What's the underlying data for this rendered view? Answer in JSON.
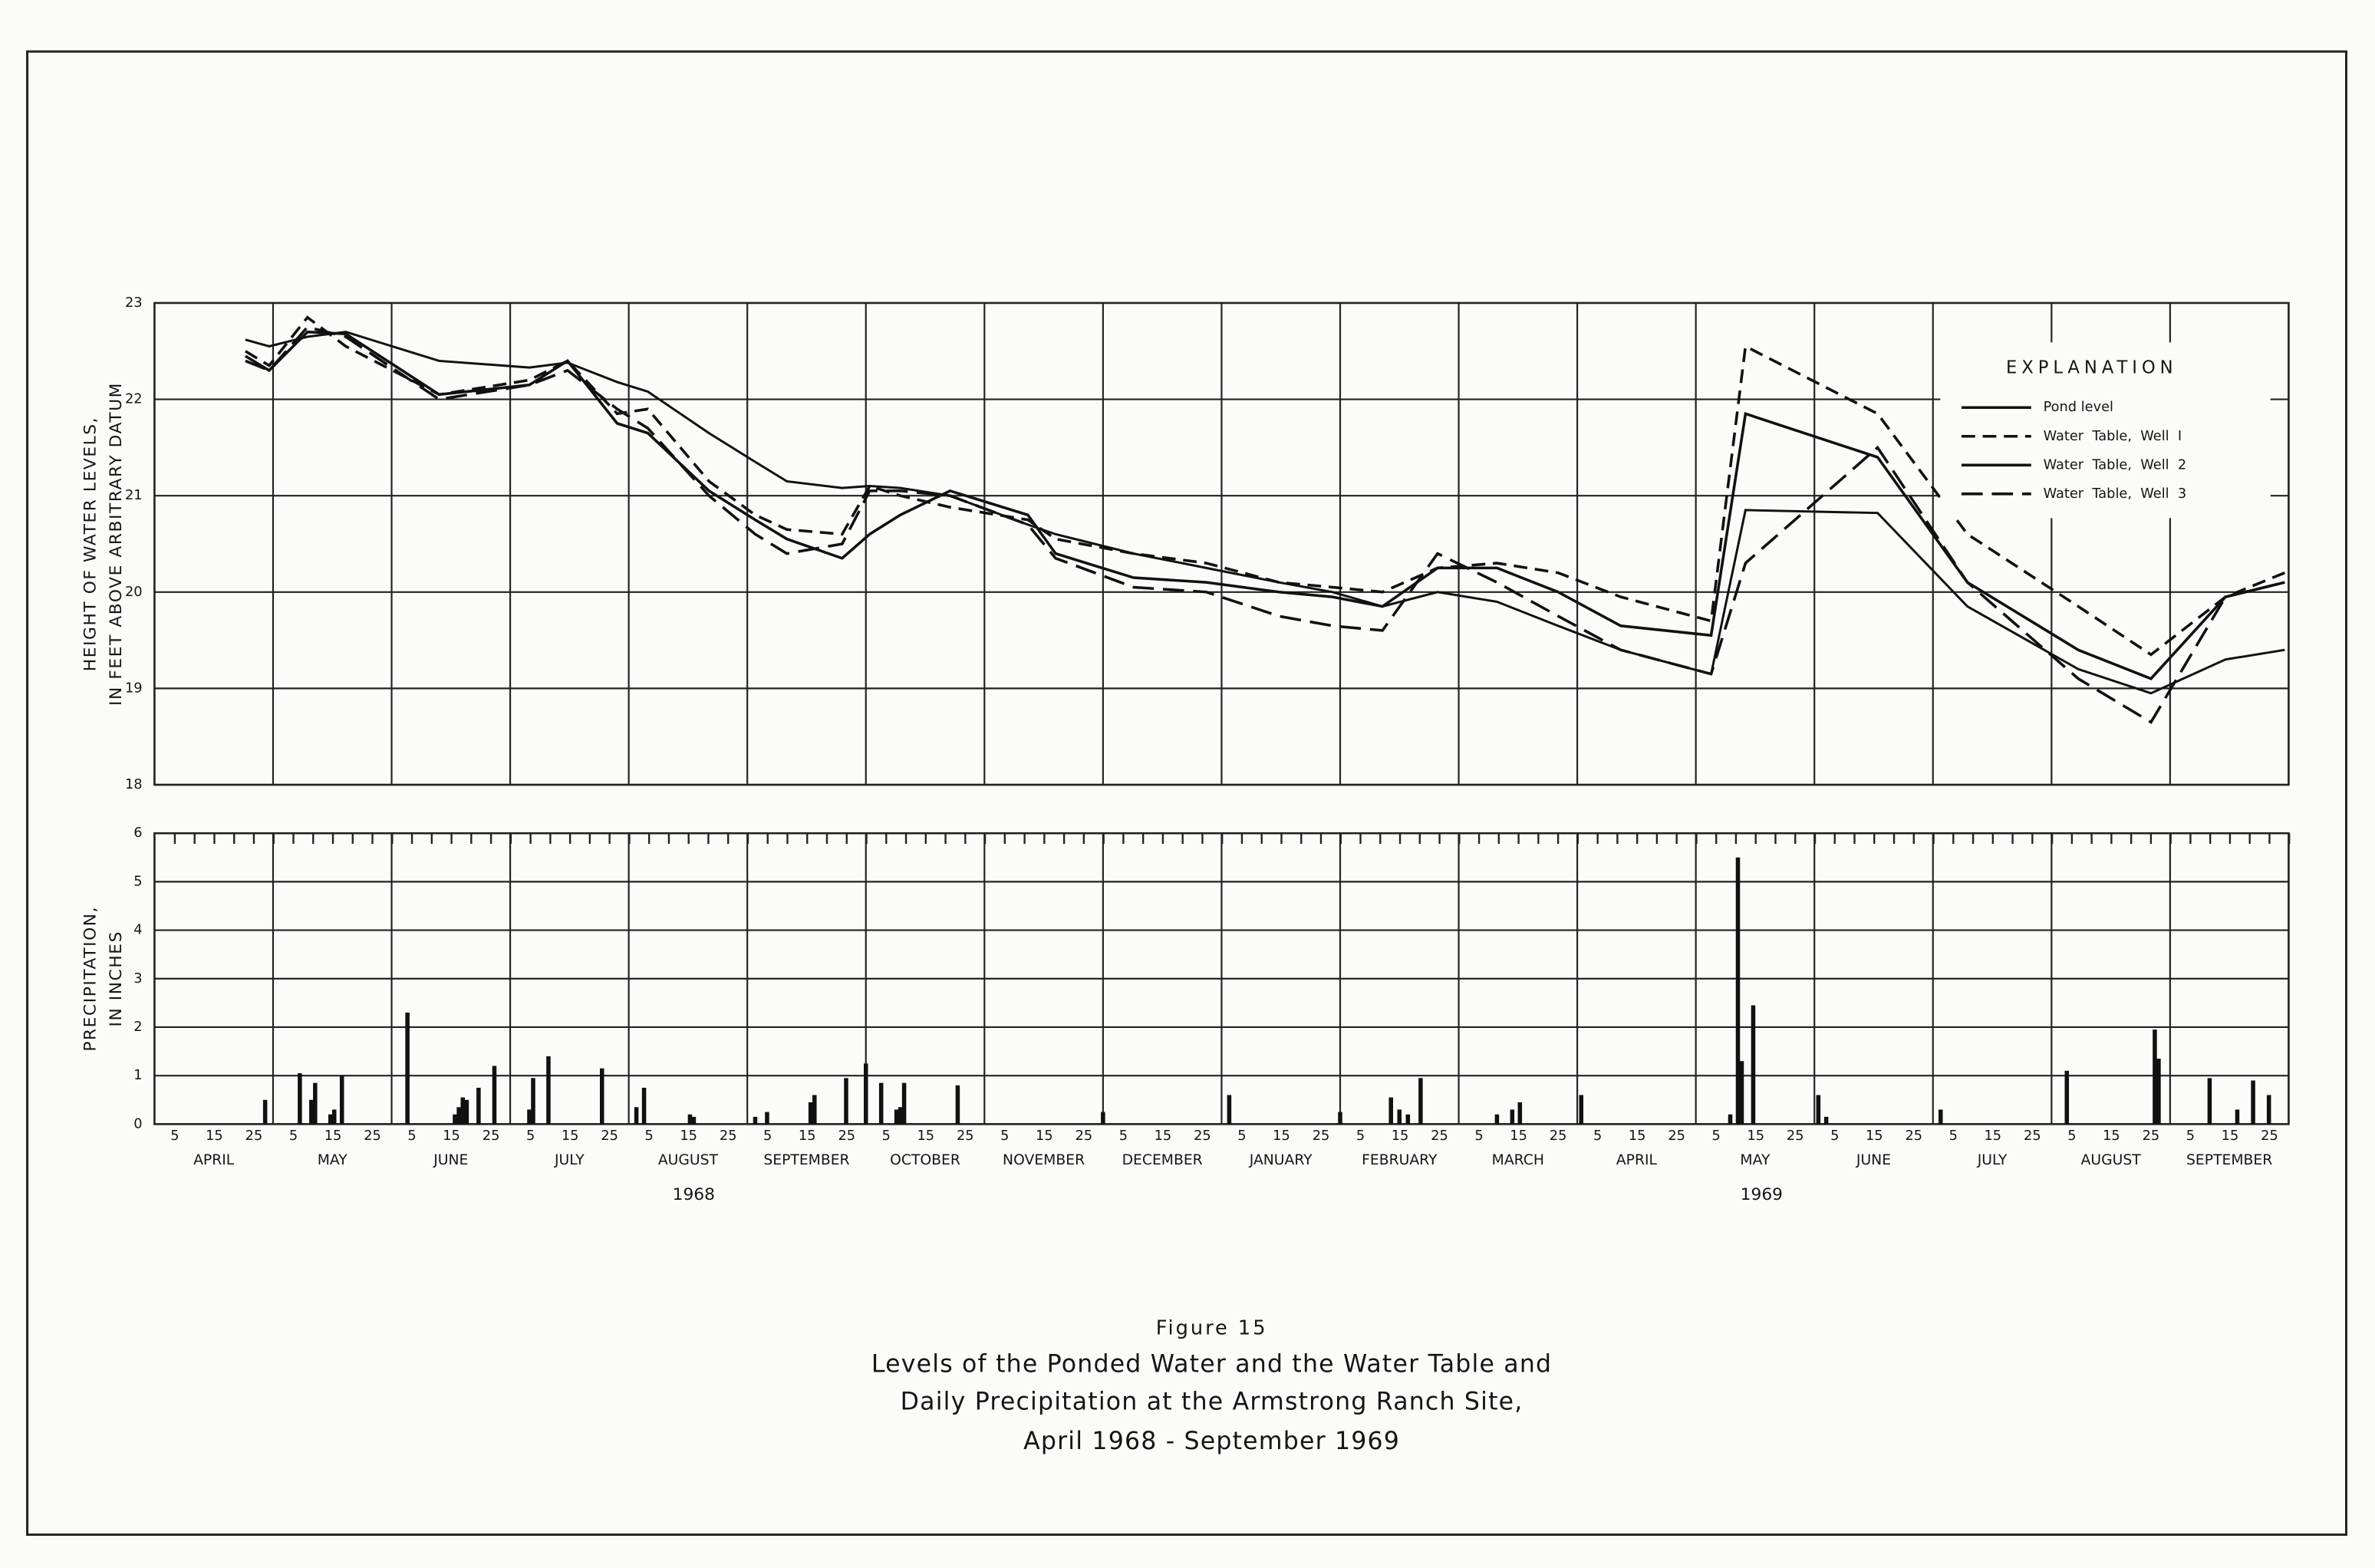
{
  "chart_data": [
    {
      "type": "line",
      "y_label": [
        "HEIGHT OF WATER LEVELS,",
        "IN FEET ABOVE ARBITRARY DATUM"
      ],
      "legend_title": "EXPLANATION",
      "legend": "upper right",
      "grid": true,
      "xlim": [
        "1968-04-01",
        "1969-10-01"
      ],
      "ylim": [
        18,
        23
      ],
      "yticks": [
        18,
        19,
        20,
        21,
        22,
        23
      ],
      "x": [
        "1968-04-24",
        "1968-04-30",
        "1968-05-10",
        "1968-05-20",
        "1968-06-13",
        "1968-07-06",
        "1968-07-16",
        "1968-07-29",
        "1968-08-06",
        "1968-08-22",
        "1968-09-03",
        "1968-09-11",
        "1968-09-25",
        "1968-10-02",
        "1968-10-10",
        "1968-10-23",
        "1968-11-12",
        "1968-11-19",
        "1968-12-09",
        "1968-12-28",
        "1969-01-16",
        "1969-01-30",
        "1969-02-11",
        "1969-02-24",
        "1969-03-11",
        "1969-03-27",
        "1969-04-12",
        "1969-05-05",
        "1969-05-14",
        "1969-06-17",
        "1969-07-10",
        "1969-08-08",
        "1969-08-27",
        "1969-09-15",
        "1969-09-30"
      ],
      "series": [
        {
          "name": "Pond level",
          "color": "#111111",
          "linestyle": "solid",
          "values": [
            22.62,
            22.55,
            22.65,
            22.7,
            22.4,
            22.33,
            22.38,
            22.18,
            22.08,
            21.65,
            21.35,
            21.15,
            21.08,
            21.1,
            21.08,
            21.0,
            20.7,
            20.6,
            20.4,
            20.25,
            20.1,
            20.0,
            19.85,
            20.0,
            19.9,
            19.65,
            19.4,
            19.15,
            20.85,
            20.82,
            19.85,
            19.2,
            18.95,
            19.3,
            19.4
          ]
        },
        {
          "name": "Water  Table,  Well  I",
          "color": "#111111",
          "linestyle": "dashed",
          "values": [
            22.5,
            22.35,
            22.85,
            22.55,
            22.05,
            22.2,
            22.4,
            21.85,
            21.9,
            21.15,
            20.8,
            20.65,
            20.6,
            21.1,
            21.0,
            20.88,
            20.75,
            20.55,
            20.4,
            20.3,
            20.1,
            20.05,
            20.0,
            20.25,
            20.3,
            20.2,
            19.95,
            19.7,
            22.55,
            21.85,
            20.6,
            19.85,
            19.35,
            19.95,
            20.2
          ]
        },
        {
          "name": "Water  Table,  Well  2",
          "color": "#111111",
          "linestyle": "solid",
          "values": [
            22.45,
            22.3,
            22.7,
            22.68,
            22.05,
            22.15,
            22.4,
            21.75,
            21.65,
            21.05,
            20.75,
            20.55,
            20.35,
            20.6,
            20.8,
            21.05,
            20.8,
            20.4,
            20.15,
            20.1,
            20.0,
            19.95,
            19.85,
            20.25,
            20.25,
            20.0,
            19.65,
            19.55,
            21.85,
            21.4,
            20.1,
            19.4,
            19.1,
            19.95,
            20.1
          ]
        },
        {
          "name": "Water  Table,  Well  3",
          "color": "#111111",
          "linestyle": "long-dashed",
          "values": [
            22.4,
            22.3,
            22.75,
            22.65,
            22.0,
            22.15,
            22.3,
            21.9,
            21.7,
            21.0,
            20.6,
            20.4,
            20.5,
            21.05,
            21.05,
            21.0,
            20.7,
            20.35,
            20.05,
            20.0,
            19.75,
            19.65,
            19.6,
            20.4,
            20.1,
            19.75,
            19.4,
            19.15,
            20.3,
            21.5,
            20.1,
            19.1,
            18.65,
            19.95,
            20.1
          ]
        }
      ]
    },
    {
      "type": "bar",
      "y_label": [
        "PRECIPITATION,",
        "IN INCHES"
      ],
      "grid": true,
      "color": "#111111",
      "xlim": [
        "1968-04-01",
        "1969-10-01"
      ],
      "ylim": [
        0,
        6
      ],
      "yticks": [
        0,
        1,
        2,
        3,
        4,
        5,
        6
      ],
      "day_ticks": [
        5,
        15,
        25
      ],
      "months": [
        "APRIL",
        "MAY",
        "JUNE",
        "JULY",
        "AUGUST",
        "SEPTEMBER",
        "OCTOBER",
        "NOVEMBER",
        "DECEMBER",
        "JANUARY",
        "FEBRUARY",
        "MARCH",
        "APRIL",
        "MAY",
        "JUNE",
        "JULY",
        "AUGUST",
        "SEPTEMBER"
      ],
      "years": [
        "1968",
        "1969"
      ],
      "x": [
        "1968-04-29",
        "1968-05-08",
        "1968-05-11",
        "1968-05-12",
        "1968-05-16",
        "1968-05-17",
        "1968-05-19",
        "1968-06-05",
        "1968-06-17",
        "1968-06-18",
        "1968-06-19",
        "1968-06-20",
        "1968-06-23",
        "1968-06-27",
        "1968-07-06",
        "1968-07-07",
        "1968-07-11",
        "1968-07-25",
        "1968-08-03",
        "1968-08-05",
        "1968-08-17",
        "1968-08-18",
        "1968-09-03",
        "1968-09-06",
        "1968-09-17",
        "1968-09-18",
        "1968-09-26",
        "1968-10-01",
        "1968-10-05",
        "1968-10-09",
        "1968-10-10",
        "1968-10-11",
        "1968-10-25",
        "1968-12-01",
        "1969-01-03",
        "1969-02-01",
        "1969-02-13",
        "1969-02-15",
        "1969-02-17",
        "1969-02-20",
        "1969-03-11",
        "1969-03-15",
        "1969-03-17",
        "1969-04-02",
        "1969-05-10",
        "1969-05-12",
        "1969-05-13",
        "1969-05-16",
        "1969-06-02",
        "1969-06-04",
        "1969-07-03",
        "1969-08-05",
        "1969-08-28",
        "1969-08-29",
        "1969-09-11",
        "1969-09-18",
        "1969-09-22",
        "1969-09-26"
      ],
      "values": [
        0.5,
        1.05,
        0.5,
        0.85,
        0.2,
        0.3,
        1.0,
        2.3,
        0.2,
        0.35,
        0.55,
        0.5,
        0.75,
        1.2,
        0.3,
        0.95,
        1.4,
        1.15,
        0.35,
        0.75,
        0.2,
        0.15,
        0.15,
        0.25,
        0.45,
        0.6,
        0.95,
        1.25,
        0.85,
        0.3,
        0.35,
        0.85,
        0.8,
        0.25,
        0.6,
        0.25,
        0.55,
        0.3,
        0.2,
        0.95,
        0.2,
        0.3,
        0.45,
        0.6,
        0.2,
        5.5,
        1.3,
        2.45,
        0.6,
        0.15,
        0.3,
        1.1,
        1.95,
        1.35,
        0.95,
        0.3,
        0.9,
        0.6
      ]
    }
  ],
  "caption": {
    "label": "Figure 15",
    "title": [
      "Levels of the Ponded Water and the Water Table and",
      "Daily Precipitation at the Armstrong Ranch Site,",
      "April 1968 - September 1969"
    ]
  }
}
